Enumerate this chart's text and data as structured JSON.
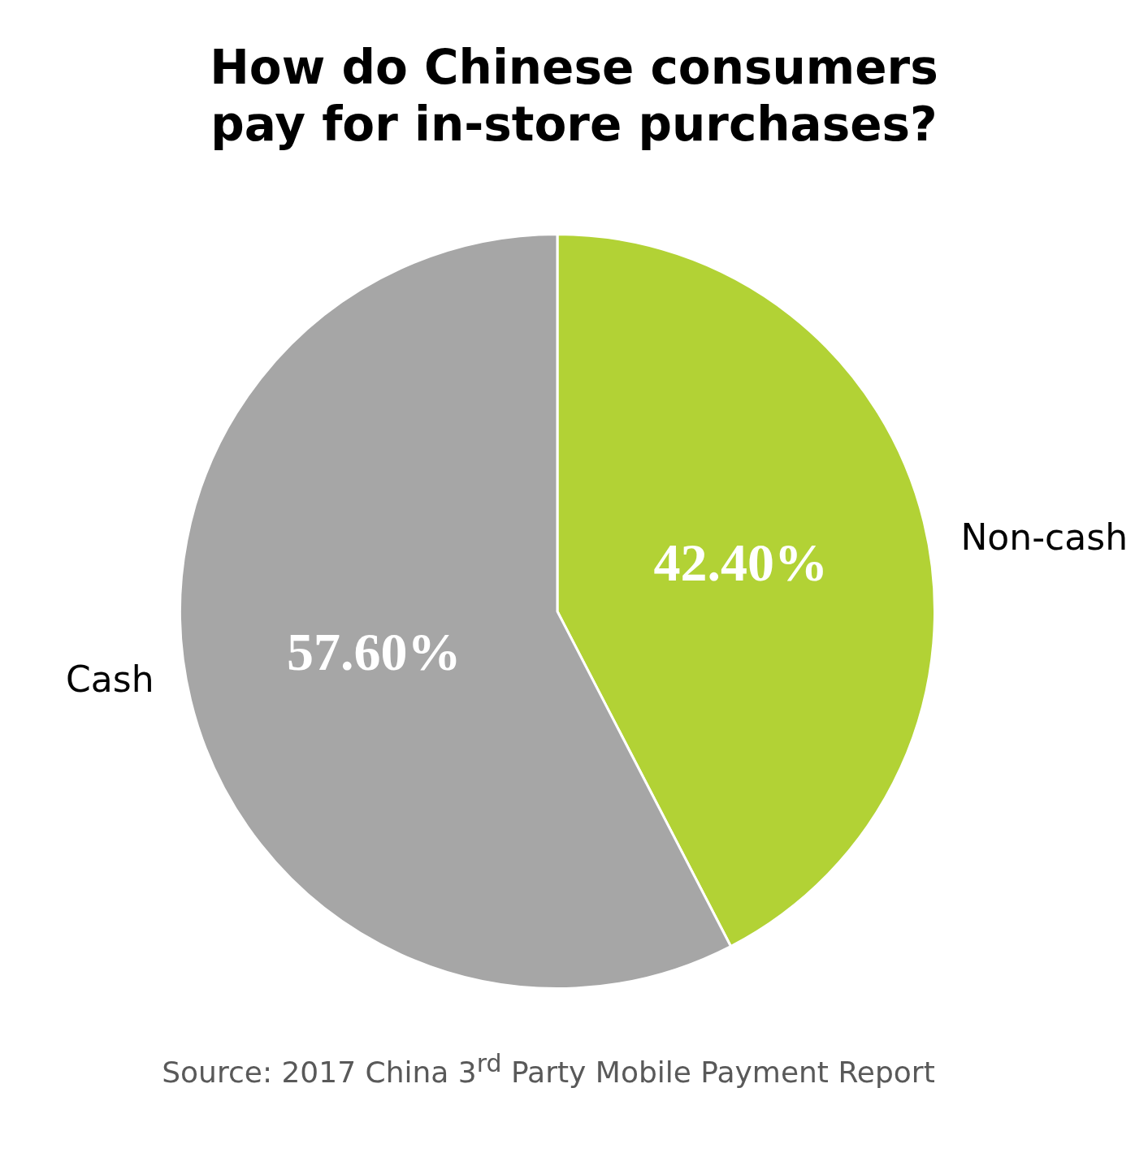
{
  "chart_data": {
    "type": "pie",
    "title": "How do Chinese consumers pay for in-store purchases?",
    "categories": [
      "Non-cash",
      "Cash"
    ],
    "values": [
      42.4,
      57.6
    ],
    "colors": [
      "#b2d235",
      "#a6a6a6"
    ],
    "value_labels": [
      "42.40%",
      "57.60%"
    ],
    "legend": false,
    "annotations": [
      "Source: 2017 China 3$^{rd}$ Party Mobile Payment Report"
    ]
  }
}
